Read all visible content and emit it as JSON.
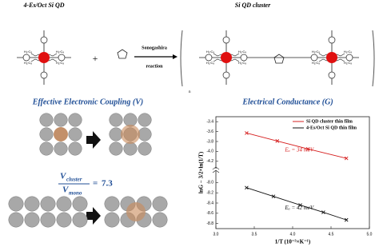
{
  "scheme": {
    "reactant_label": "4-Es/Oct Si QD",
    "product_label": "Si QD cluster",
    "plus": "+",
    "reaction": [
      "Sonogashira",
      "reaction"
    ],
    "substituent": "H₁₇C₈"
  },
  "coupling": {
    "title": "Effective Electronic Coupling (V)",
    "symbol": "V",
    "numerator_sub": "cluster",
    "denominator_sub": "mono",
    "equals": "=",
    "value": 7.3
  },
  "conductance_title": "Electrical Conductance (G)",
  "chart_data": [
    {
      "type": "line",
      "ylabel": "lnG − 3/2×ln(1/T)",
      "xlim": [
        3.0,
        5.0
      ],
      "ylim": [
        -4.3,
        -3.3
      ],
      "yticks": [
        -3.4,
        -3.6,
        -3.8,
        {
          "value": -4.0,
          "label": "-4.0"
        },
        -4.2
      ],
      "series": [
        {
          "name": "Si QD cluster thin film",
          "color": "#d62020",
          "x": [
            3.4,
            3.8,
            4.2,
            4.7
          ],
          "values": [
            -3.63,
            -3.79,
            -3.95,
            -4.14
          ]
        }
      ],
      "annotation": "Eₐ = 34 meV"
    },
    {
      "type": "line",
      "xlabel": "1/T (10⁻³×K⁻¹)",
      "xlim": [
        3.0,
        5.0
      ],
      "ylim": [
        -8.9,
        -7.9
      ],
      "xticks": [
        {
          "value": 3.0,
          "label": "3.0"
        },
        3.5,
        {
          "value": 4.0,
          "label": "4.0"
        },
        4.5,
        {
          "value": 5.0,
          "label": "5.0"
        }
      ],
      "yticks": [
        {
          "value": -8.0,
          "label": "-8.0"
        },
        -8.2,
        -8.4,
        -8.6,
        -8.8
      ],
      "series": [
        {
          "name": "4-Es/Oct Si QD thin film",
          "color": "#111111",
          "x": [
            3.4,
            3.75,
            4.1,
            4.4,
            4.7
          ],
          "values": [
            -8.1,
            -8.27,
            -8.44,
            -8.58,
            -8.73
          ]
        }
      ],
      "annotation": "Eₐ = 42 meV"
    }
  ]
}
